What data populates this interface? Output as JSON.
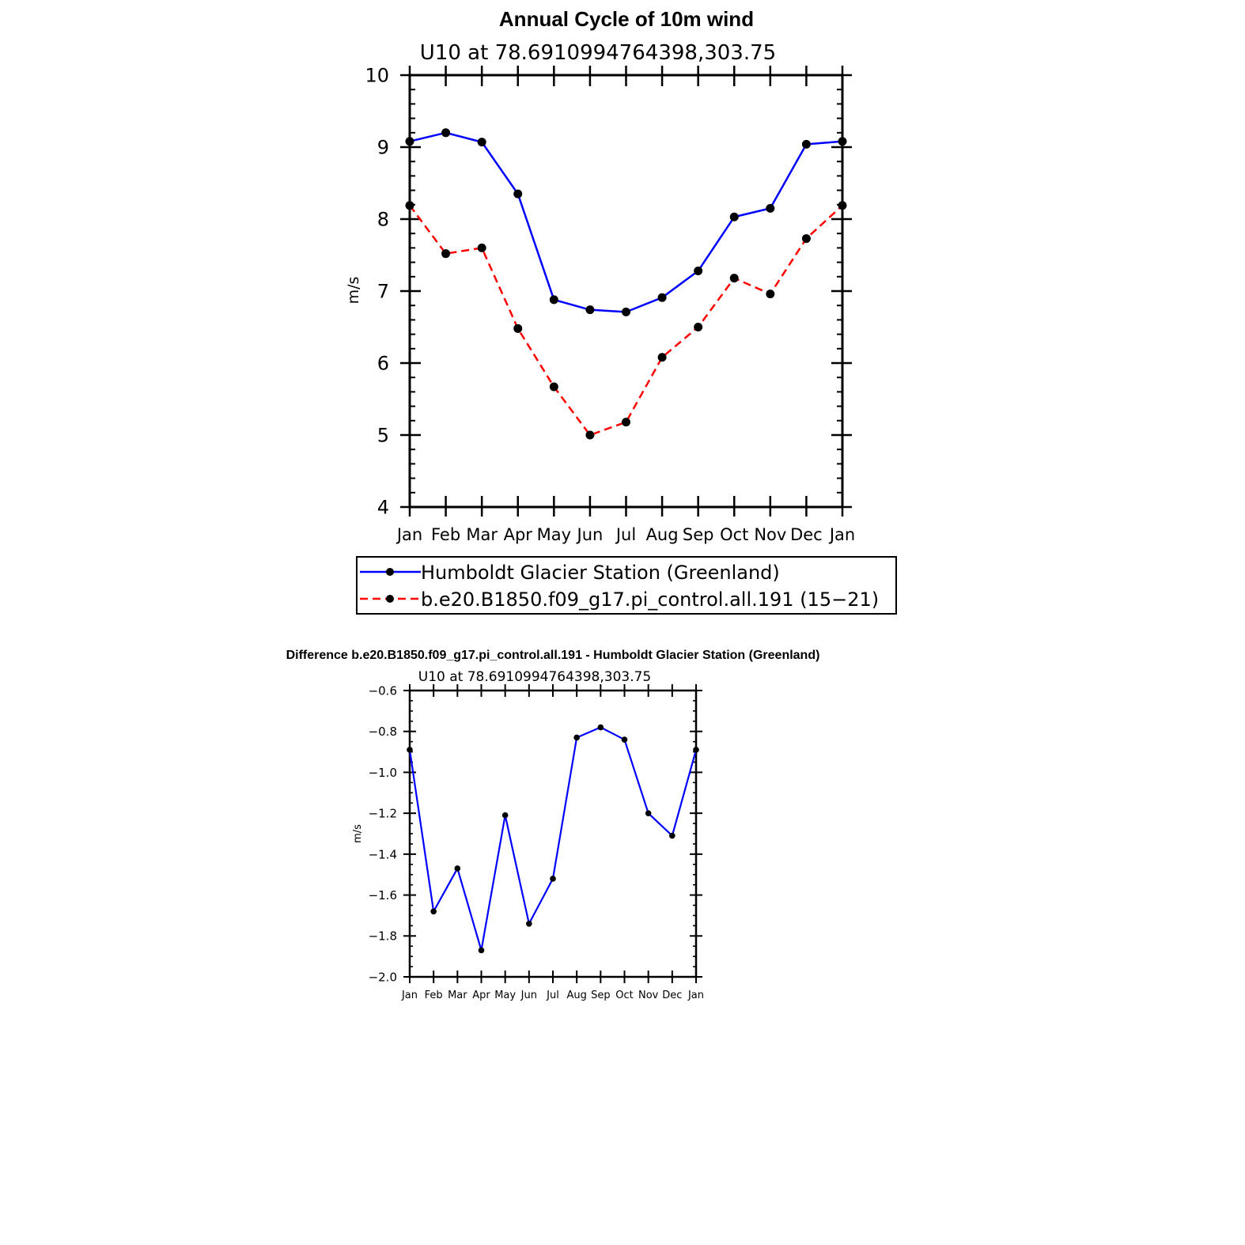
{
  "chart_data": [
    {
      "type": "line",
      "title": "Annual Cycle of 10m wind",
      "subtitle": "U10 at 78.6910994764398,303.75",
      "ylabel": "m/s",
      "xlabel": "",
      "categories": [
        "Jan",
        "Feb",
        "Mar",
        "Apr",
        "May",
        "Jun",
        "Jul",
        "Aug",
        "Sep",
        "Oct",
        "Nov",
        "Dec",
        "Jan"
      ],
      "ylim": [
        4,
        10
      ],
      "yticks": [
        "4",
        "5",
        "6",
        "7",
        "8",
        "9",
        "10"
      ],
      "series": [
        {
          "name": "Humboldt Glacier Station (Greenland)",
          "color": "#0000ff",
          "dash": "solid",
          "values": [
            9.08,
            9.2,
            9.07,
            8.35,
            6.88,
            6.74,
            6.71,
            6.91,
            7.28,
            8.03,
            8.15,
            9.04,
            9.08
          ]
        },
        {
          "name": "b.e20.B1850.f09_g17.pi_control.all.191 (15−21)",
          "color": "#ff0000",
          "dash": "dashed",
          "values": [
            8.19,
            7.52,
            7.6,
            6.48,
            5.67,
            5.0,
            5.18,
            6.08,
            6.5,
            7.18,
            6.96,
            7.73,
            8.19
          ]
        }
      ],
      "legend": "bottom"
    },
    {
      "type": "line",
      "title": "Difference b.e20.B1850.f09_g17.pi_control.all.191 - Humboldt Glacier Station (Greenland)",
      "subtitle": "U10 at 78.6910994764398,303.75",
      "ylabel": "m/s",
      "xlabel": "",
      "categories": [
        "Jan",
        "Feb",
        "Mar",
        "Apr",
        "May",
        "Jun",
        "Jul",
        "Aug",
        "Sep",
        "Oct",
        "Nov",
        "Dec",
        "Jan"
      ],
      "ylim": [
        -2.0,
        -0.6
      ],
      "yticks": [
        "−2.0",
        "−1.8",
        "−1.6",
        "−1.4",
        "−1.2",
        "−1.0",
        "−0.8",
        "−0.6"
      ],
      "series": [
        {
          "name": "",
          "color": "#0000ff",
          "dash": "solid",
          "values": [
            -0.89,
            -1.68,
            -1.47,
            -1.87,
            -1.21,
            -1.74,
            -1.52,
            -0.83,
            -0.78,
            -0.84,
            -1.2,
            -1.31,
            -0.89
          ]
        }
      ]
    }
  ]
}
